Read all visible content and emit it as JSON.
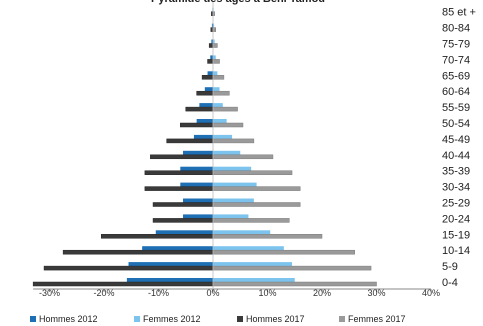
{
  "chart_data": {
    "type": "bar",
    "title": "Pyramide des âges à Beni Tamou",
    "categories": [
      "0-4",
      "5-9",
      "10-14",
      "15-19",
      "20-24",
      "25-29",
      "30-34",
      "35-39",
      "40-44",
      "45-49",
      "50-54",
      "55-59",
      "60-64",
      "65-69",
      "70-74",
      "75-79",
      "80-84",
      "85 et +"
    ],
    "series": [
      {
        "name": "Hommes 2012",
        "color": "#1f6fb5",
        "values": [
          -15.8,
          -15.5,
          -13.0,
          -10.5,
          -5.5,
          -5.5,
          -6.0,
          -6.0,
          -5.5,
          -3.5,
          -3.0,
          -2.5,
          -1.5,
          -1.0,
          -0.5,
          -0.3,
          -0.2,
          -0.1
        ]
      },
      {
        "name": "Femmes 2012",
        "color": "#7cc4ee",
        "values": [
          15.0,
          14.5,
          13.0,
          10.5,
          6.5,
          7.5,
          8.0,
          7.0,
          5.0,
          3.5,
          2.5,
          1.8,
          1.2,
          0.8,
          0.5,
          0.3,
          0.2,
          0.1
        ]
      },
      {
        "name": "Hommes 2017",
        "color": "#3a3a3a",
        "values": [
          -33.0,
          -31.0,
          -27.5,
          -20.5,
          -11.0,
          -11.0,
          -12.5,
          -12.5,
          -11.5,
          -8.5,
          -6.0,
          -5.0,
          -3.0,
          -2.0,
          -1.0,
          -0.7,
          -0.4,
          -0.3
        ]
      },
      {
        "name": "Femmes 2017",
        "color": "#9a9a9a",
        "values": [
          30.0,
          29.0,
          26.0,
          20.0,
          14.0,
          16.0,
          16.0,
          14.5,
          11.0,
          7.5,
          5.5,
          4.5,
          3.0,
          2.0,
          1.2,
          0.8,
          0.5,
          0.3
        ]
      }
    ],
    "x_ticks": [
      "-30%",
      "-20%",
      "-10%",
      "0%",
      "10%",
      "20%",
      "30%",
      "40%"
    ],
    "x_tick_values": [
      -30,
      -20,
      -10,
      0,
      10,
      20,
      30,
      40
    ],
    "xlim": [
      -33,
      40
    ],
    "xlabel": "",
    "ylabel": "",
    "grid": false,
    "legend": "bottom"
  }
}
